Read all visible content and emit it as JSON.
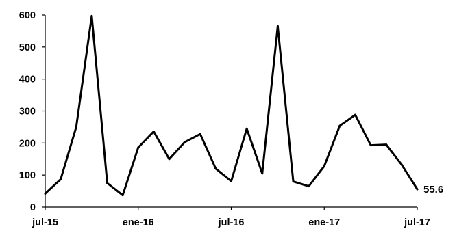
{
  "chart_data": {
    "type": "line",
    "title": "",
    "xlabel": "",
    "ylabel": "",
    "x_tick_labels": [
      "jul-15",
      "ene-16",
      "jul-16",
      "ene-17",
      "jul-17"
    ],
    "y_tick_labels": [
      "0",
      "100",
      "200",
      "300",
      "400",
      "500",
      "600"
    ],
    "ylim": [
      0,
      600
    ],
    "grid": false,
    "series": [
      {
        "x": [
          "2015-07",
          "2015-08",
          "2015-09",
          "2015-10",
          "2015-11",
          "2015-12",
          "2016-01",
          "2016-02",
          "2016-03",
          "2016-04",
          "2016-05",
          "2016-06",
          "2016-07",
          "2016-08",
          "2016-09",
          "2016-10",
          "2016-11",
          "2016-12",
          "2017-01",
          "2017-02",
          "2017-03",
          "2017-04",
          "2017-05",
          "2017-06",
          "2017-07"
        ],
        "values": [
          42,
          87,
          250,
          597,
          75,
          37,
          186,
          236,
          150,
          203,
          228,
          120,
          81,
          245,
          105,
          565,
          80,
          65,
          128,
          254,
          288,
          193,
          195,
          132,
          55.6
        ]
      }
    ],
    "end_label": "55.6",
    "line_color": "#000000"
  }
}
